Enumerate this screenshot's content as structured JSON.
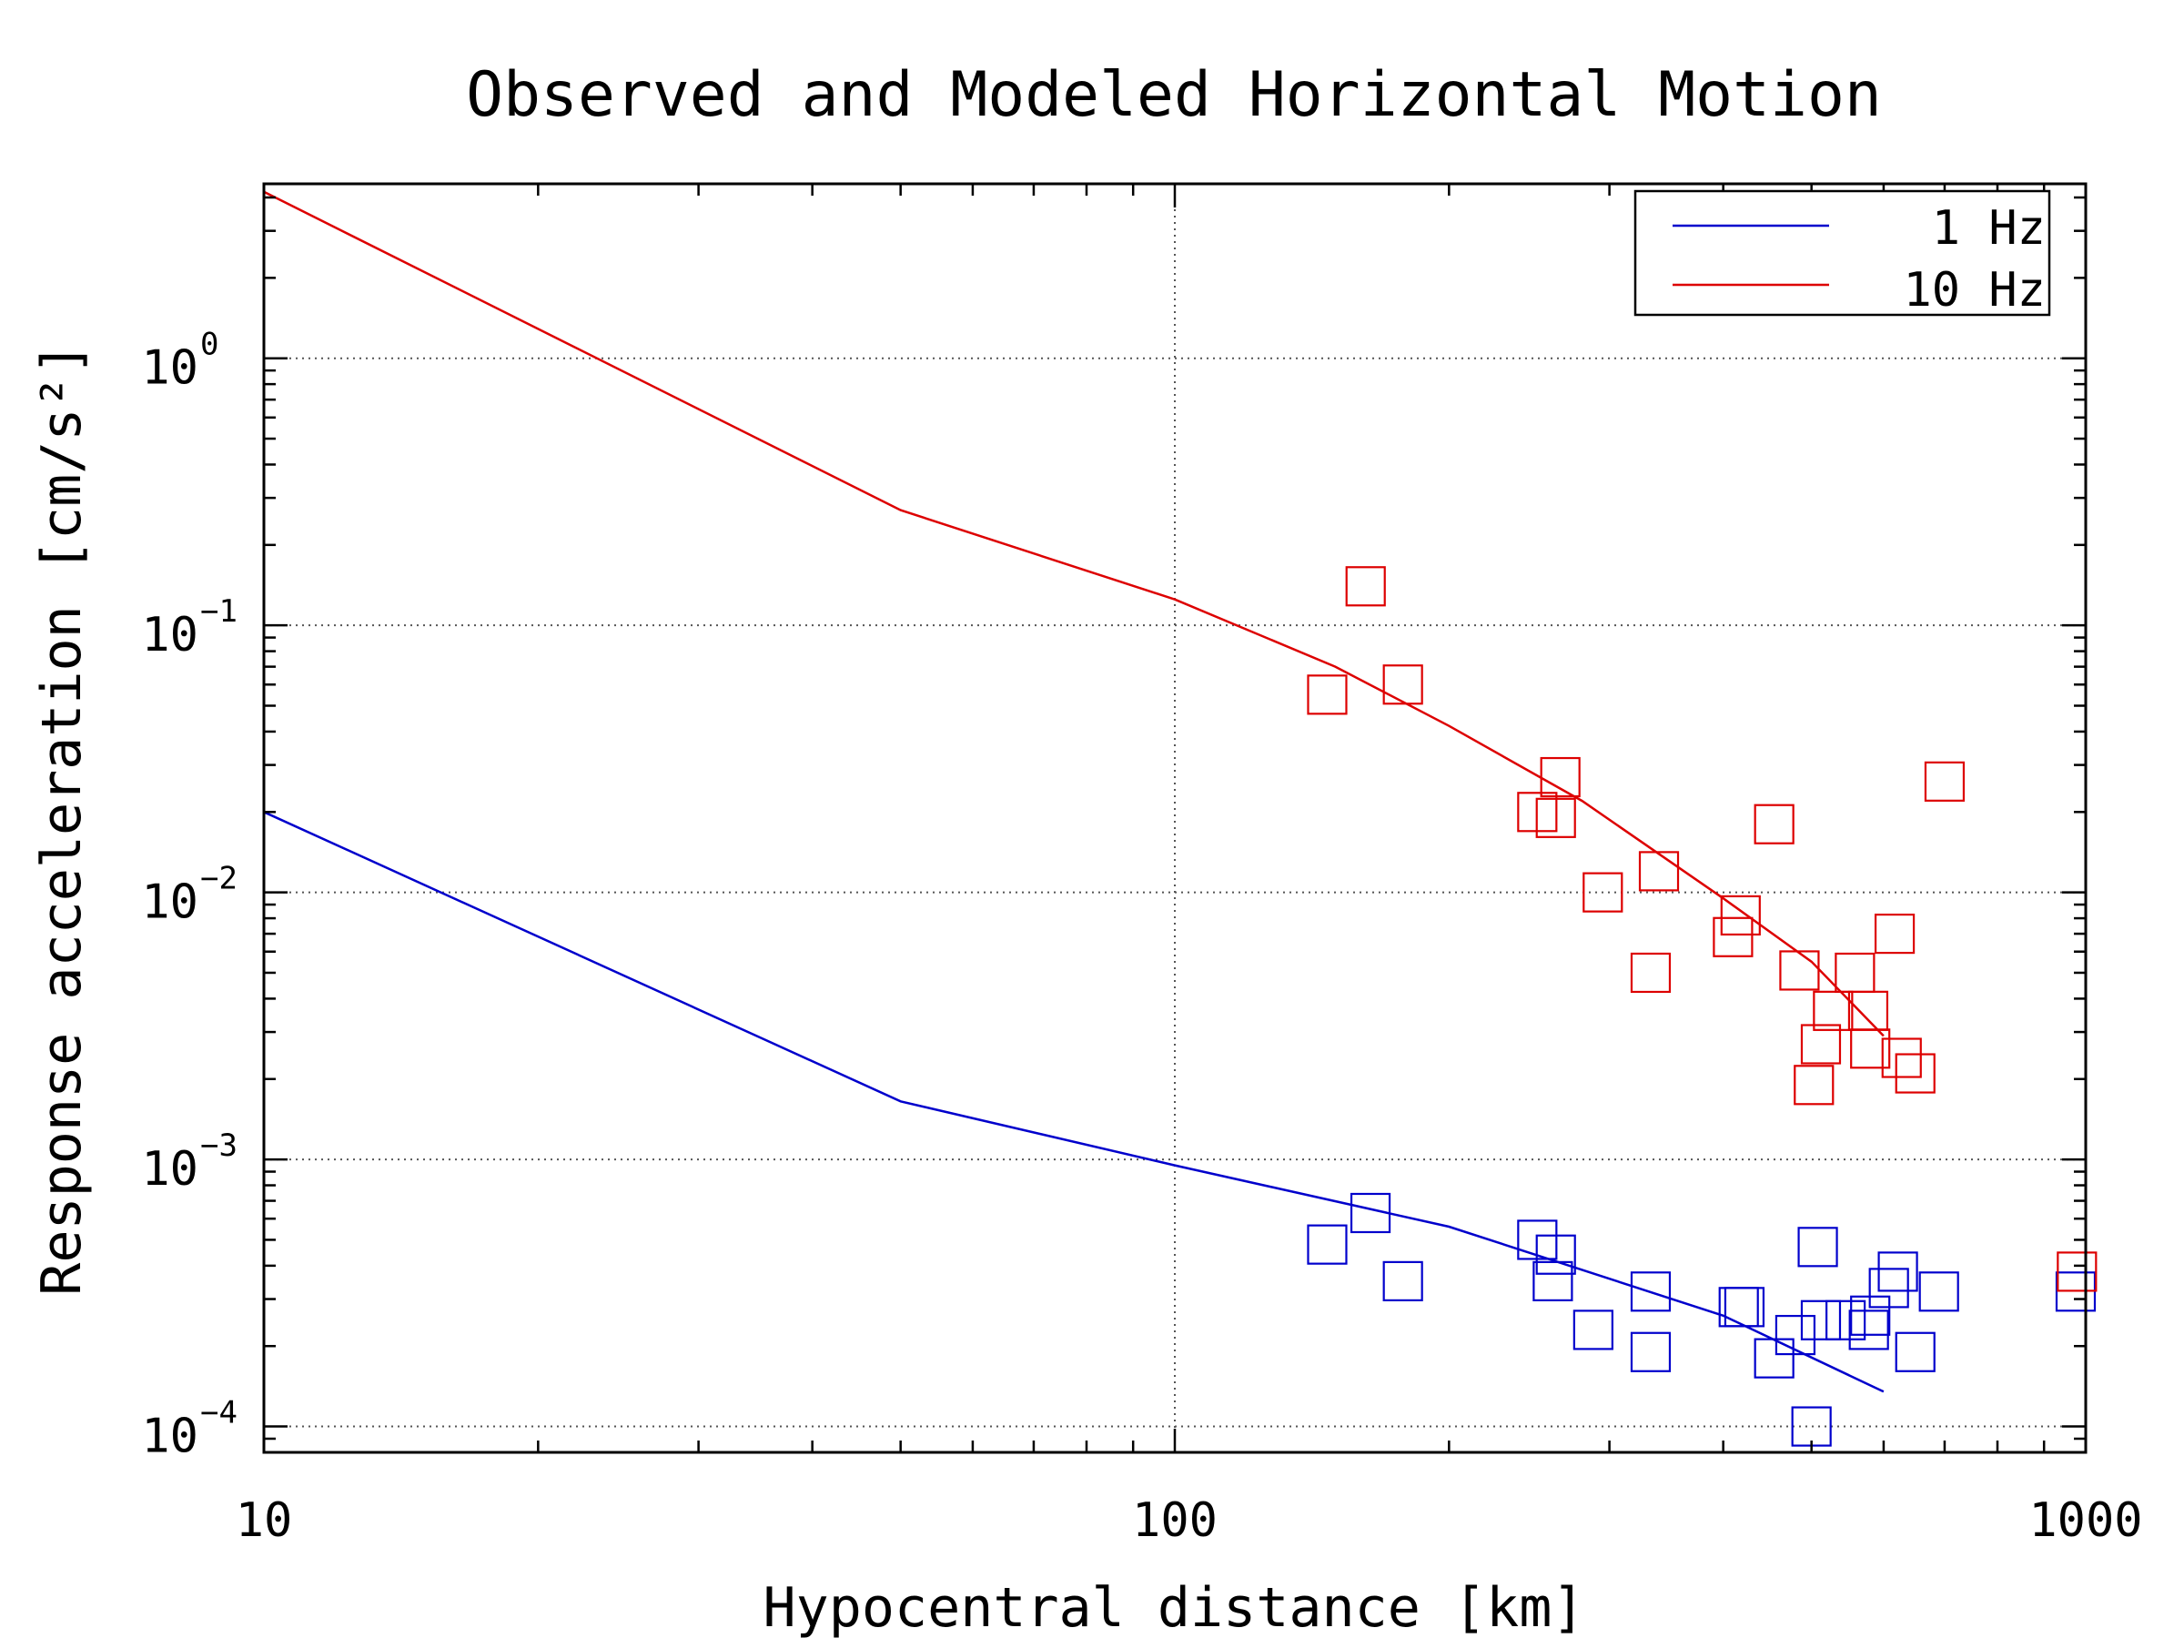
{
  "chart_data": {
    "type": "scatter",
    "title": "Observed and Modeled Horizontal Motion",
    "xlabel": "Hypocentral distance [km]",
    "ylabel": "Response acceleration [cm/s²]",
    "x_scale": "log",
    "y_scale": "log",
    "xlim": [
      10,
      1000
    ],
    "ylim": [
      8e-05,
      4.5
    ],
    "grid": true,
    "legend_position": "top-right",
    "x_ticks": [
      {
        "value": 10,
        "label": "10"
      },
      {
        "value": 100,
        "label": "100"
      },
      {
        "value": 1000,
        "label": "1000"
      }
    ],
    "y_ticks": [
      {
        "value": 1,
        "base": "10",
        "exp": "0"
      },
      {
        "value": 0.1,
        "base": "10",
        "exp": "−1"
      },
      {
        "value": 0.01,
        "base": "10",
        "exp": "−2"
      },
      {
        "value": 0.001,
        "base": "10",
        "exp": "−3"
      },
      {
        "value": 0.0001,
        "base": "10",
        "exp": "−4"
      }
    ],
    "series": [
      {
        "name": "1 Hz",
        "color": "#0000cc",
        "model_line": [
          {
            "x": 10,
            "y": 0.02
          },
          {
            "x": 50,
            "y": 0.00165
          },
          {
            "x": 100,
            "y": 0.00095
          },
          {
            "x": 200,
            "y": 0.00056
          },
          {
            "x": 400,
            "y": 0.00026
          },
          {
            "x": 600,
            "y": 0.000135
          }
        ],
        "observed": [
          {
            "x": 147,
            "y": 0.00048
          },
          {
            "x": 164,
            "y": 0.00063
          },
          {
            "x": 178,
            "y": 0.00035
          },
          {
            "x": 250,
            "y": 0.0005
          },
          {
            "x": 262,
            "y": 0.00044
          },
          {
            "x": 260,
            "y": 0.00035
          },
          {
            "x": 288,
            "y": 0.00023
          },
          {
            "x": 333,
            "y": 0.00032
          },
          {
            "x": 333,
            "y": 0.00019
          },
          {
            "x": 416,
            "y": 0.00028
          },
          {
            "x": 422,
            "y": 0.00028
          },
          {
            "x": 455,
            "y": 0.00018
          },
          {
            "x": 480,
            "y": 0.00022
          },
          {
            "x": 500,
            "y": 0.0001
          },
          {
            "x": 508,
            "y": 0.00047
          },
          {
            "x": 512,
            "y": 0.00025
          },
          {
            "x": 545,
            "y": 0.00025
          },
          {
            "x": 578,
            "y": 0.00023
          },
          {
            "x": 580,
            "y": 0.00026
          },
          {
            "x": 608,
            "y": 0.00033
          },
          {
            "x": 622,
            "y": 0.00038
          },
          {
            "x": 650,
            "y": 0.00019
          },
          {
            "x": 690,
            "y": 0.00032
          },
          {
            "x": 975,
            "y": 0.00032
          }
        ]
      },
      {
        "name": "10 Hz",
        "color": "#dd0000",
        "model_line": [
          {
            "x": 10,
            "y": 4.2
          },
          {
            "x": 50,
            "y": 0.27
          },
          {
            "x": 100,
            "y": 0.125
          },
          {
            "x": 150,
            "y": 0.07
          },
          {
            "x": 200,
            "y": 0.042
          },
          {
            "x": 280,
            "y": 0.022
          },
          {
            "x": 400,
            "y": 0.0095
          },
          {
            "x": 500,
            "y": 0.0055
          },
          {
            "x": 600,
            "y": 0.0029
          }
        ],
        "observed": [
          {
            "x": 147,
            "y": 0.055
          },
          {
            "x": 162,
            "y": 0.14
          },
          {
            "x": 178,
            "y": 0.06
          },
          {
            "x": 250,
            "y": 0.02
          },
          {
            "x": 265,
            "y": 0.027
          },
          {
            "x": 262,
            "y": 0.019
          },
          {
            "x": 295,
            "y": 0.01
          },
          {
            "x": 333,
            "y": 0.005
          },
          {
            "x": 340,
            "y": 0.012
          },
          {
            "x": 410,
            "y": 0.0068
          },
          {
            "x": 418,
            "y": 0.0082
          },
          {
            "x": 455,
            "y": 0.018
          },
          {
            "x": 485,
            "y": 0.0051
          },
          {
            "x": 503,
            "y": 0.0019
          },
          {
            "x": 512,
            "y": 0.0027
          },
          {
            "x": 528,
            "y": 0.0036
          },
          {
            "x": 558,
            "y": 0.005
          },
          {
            "x": 577,
            "y": 0.0036
          },
          {
            "x": 580,
            "y": 0.0026
          },
          {
            "x": 617,
            "y": 0.007
          },
          {
            "x": 628,
            "y": 0.0024
          },
          {
            "x": 650,
            "y": 0.0021
          },
          {
            "x": 700,
            "y": 0.026
          },
          {
            "x": 978,
            "y": 0.00038
          }
        ]
      }
    ]
  }
}
